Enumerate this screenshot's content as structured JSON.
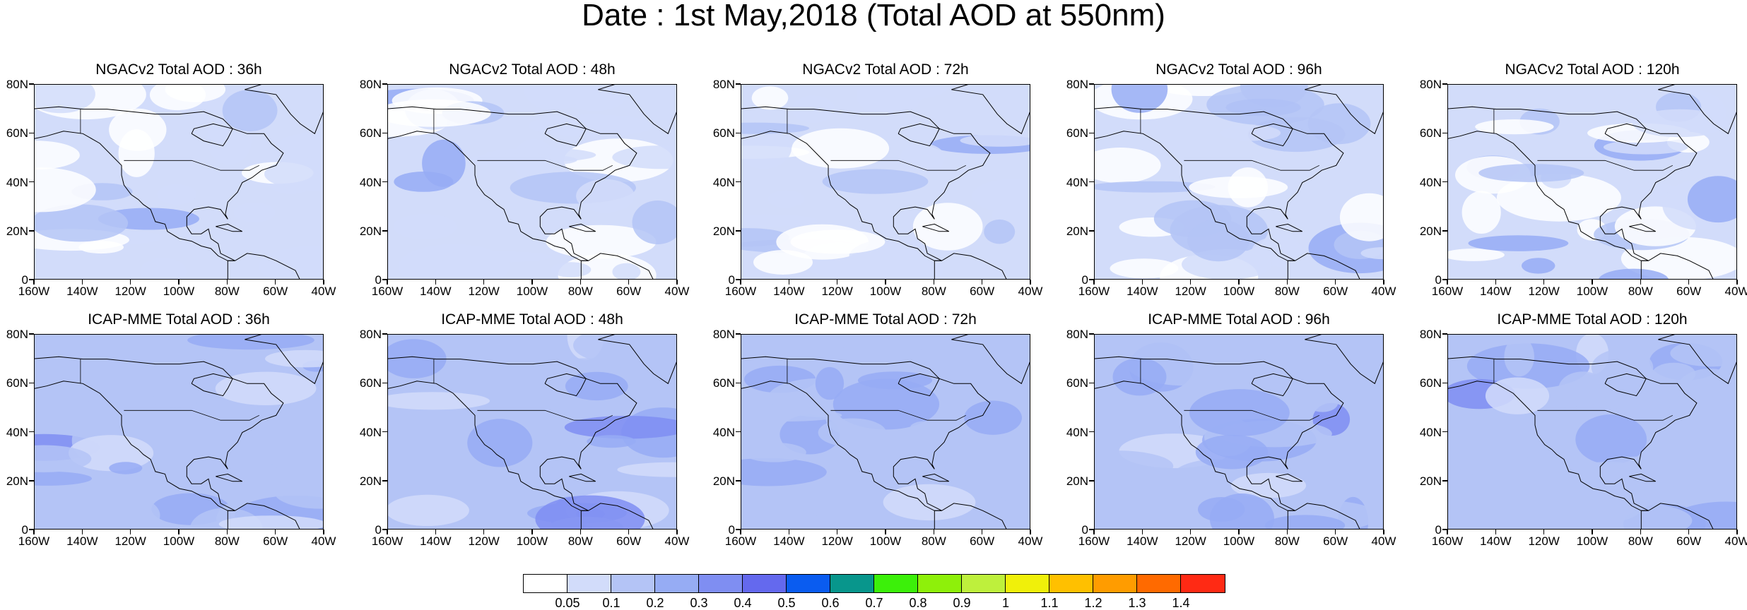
{
  "title": "Date : 1st May,2018 (Total AOD at 550nm)",
  "panels": [
    {
      "title": "NGACv2 Total AOD : 36h"
    },
    {
      "title": "NGACv2 Total AOD : 48h"
    },
    {
      "title": "NGACv2 Total AOD : 72h"
    },
    {
      "title": "NGACv2 Total AOD : 96h"
    },
    {
      "title": "NGACv2 Total AOD : 120h"
    },
    {
      "title": "ICAP-MME Total AOD : 36h"
    },
    {
      "title": "ICAP-MME Total AOD : 48h"
    },
    {
      "title": "ICAP-MME Total AOD : 72h"
    },
    {
      "title": "ICAP-MME Total AOD : 96h"
    },
    {
      "title": "ICAP-MME Total AOD : 120h"
    }
  ],
  "axes": {
    "lat_ticks": [
      "80N",
      "60N",
      "40N",
      "20N",
      "0"
    ],
    "lon_ticks": [
      "160W",
      "140W",
      "120W",
      "100W",
      "80W",
      "60W",
      "40W"
    ],
    "lat_range": [
      0,
      80
    ],
    "lon_range": [
      -160,
      -40
    ]
  },
  "colorbar": {
    "colors": [
      "#ffffff",
      "#d2dcfa",
      "#b4c4f6",
      "#96acf4",
      "#7f8ef2",
      "#6469ee",
      "#0a5cf0",
      "#08968c",
      "#3cf00a",
      "#8ef00a",
      "#bef03c",
      "#f0f00a",
      "#ffc000",
      "#ff9c00",
      "#ff6a00",
      "#ff2a14"
    ],
    "labels": [
      "0.05",
      "0.1",
      "0.2",
      "0.3",
      "0.4",
      "0.5",
      "0.6",
      "0.7",
      "0.8",
      "0.9",
      "1",
      "1.1",
      "1.2",
      "1.3",
      "1.4"
    ]
  }
}
